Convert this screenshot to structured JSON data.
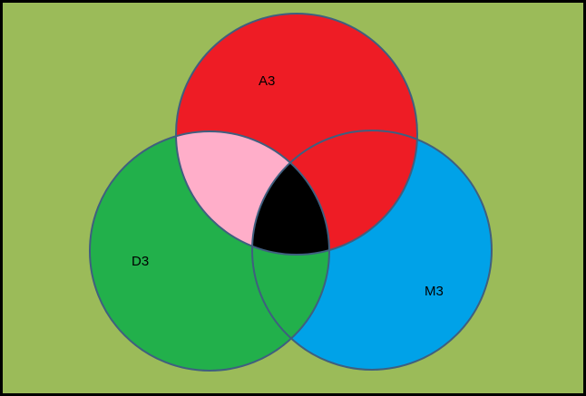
{
  "diagram": {
    "type": "venn-3",
    "labels": {
      "a": "A3",
      "d": "D3",
      "m": "M3"
    },
    "colors": {
      "frame": "#000000",
      "background": "#9BBB59",
      "circle_a": "#EE1C25",
      "circle_d": "#22B04B",
      "circle_m": "#00A2E8",
      "overlap_a_d": "#FFAEC9",
      "overlap_a_m": "#EE1C25",
      "overlap_d_m": "#22B04B",
      "overlap_all": "#000000",
      "outline": "#3F5F7F",
      "label_text": "#000000"
    }
  }
}
